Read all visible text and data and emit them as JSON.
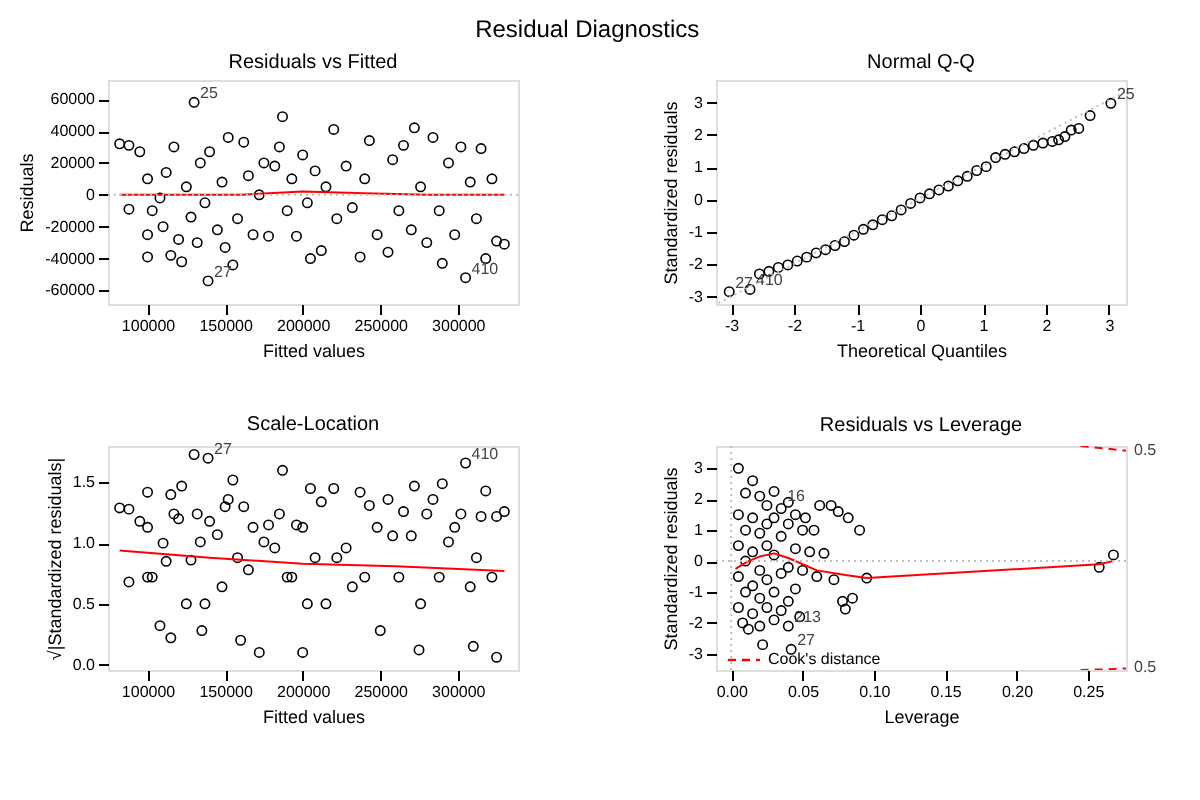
{
  "chart_data": [
    {
      "type": "other",
      "title": "Residual Diagnostics"
    },
    {
      "type": "scatter",
      "title": "Residuals vs Fitted",
      "xlabel": "Fitted values",
      "ylabel": "Residuals",
      "xlim": [
        74500,
        338800
      ],
      "ylim": [
        -68500,
        72000
      ],
      "xticks": [
        100000,
        150000,
        200000,
        250000,
        300000
      ],
      "yticks": [
        -60000,
        -40000,
        -20000,
        0,
        20000,
        40000,
        60000
      ],
      "grid": false,
      "marker": "circle",
      "series": [
        {
          "type": "scatter",
          "color": "#000000",
          "x": [
            82000,
            88000,
            88000,
            95000,
            100000,
            100000,
            100000,
            103000,
            108000,
            110000,
            112000,
            115000,
            117000,
            120000,
            122000,
            125000,
            128000,
            130000,
            132000,
            134000,
            137000,
            139000,
            140000,
            145000,
            148000,
            150000,
            152000,
            155000,
            158000,
            162000,
            165000,
            168000,
            172000,
            175000,
            178000,
            182000,
            185000,
            187000,
            190000,
            193000,
            196000,
            200000,
            203000,
            205000,
            208000,
            212000,
            215000,
            220000,
            222000,
            228000,
            232000,
            237000,
            240000,
            243000,
            248000,
            255000,
            258000,
            262000,
            265000,
            270000,
            272000,
            276000,
            280000,
            284000,
            288000,
            290000,
            294000,
            298000,
            302000,
            305000,
            308000,
            312000,
            315000,
            318000,
            322000,
            325000,
            330000
          ],
          "values": [
            32000,
            31000,
            -9000,
            27000,
            -25000,
            -39000,
            10000,
            -10000,
            -2000,
            -20000,
            14000,
            -38000,
            30000,
            -28000,
            -42000,
            5000,
            -14000,
            58000,
            -30000,
            20000,
            -5000,
            -54000,
            27000,
            -22000,
            8000,
            -33000,
            36000,
            -44000,
            -15000,
            33000,
            12000,
            -25000,
            0,
            20000,
            -26000,
            18000,
            30000,
            49000,
            -10000,
            10000,
            -26000,
            25000,
            -5000,
            -40000,
            15000,
            -35000,
            5000,
            41000,
            -15000,
            18000,
            -8000,
            -39000,
            10000,
            34000,
            -25000,
            -36000,
            22000,
            -10000,
            31000,
            -22000,
            42000,
            5000,
            -30000,
            36000,
            -10000,
            -43000,
            20000,
            -25000,
            30000,
            -52000,
            8000,
            -15000,
            29000,
            -40000,
            10000,
            -29000,
            -31000
          ]
        },
        {
          "type": "line",
          "color": "#ff0000",
          "line_style": "solid",
          "marker": "none",
          "x": [
            82000,
            120000,
            160000,
            200000,
            240000,
            280000,
            330000
          ],
          "values": [
            0,
            0,
            0,
            2000,
            1000,
            0,
            0
          ]
        }
      ],
      "ref_lines": [
        {
          "axis": "y",
          "value": 0,
          "color": "#bebebe",
          "line_style": "dotted"
        }
      ],
      "annotations": [
        {
          "text": "25",
          "x": 130000,
          "y": 58000
        },
        {
          "text": "27",
          "x": 139000,
          "y": -54000
        },
        {
          "text": "410",
          "x": 305000,
          "y": -52000
        }
      ]
    },
    {
      "type": "scatter",
      "title": "Normal Q-Q",
      "xlabel": "Theoretical Quantiles",
      "ylabel": "Standardized residuals",
      "xlim": [
        -3.24,
        3.27
      ],
      "ylim": [
        -3.23,
        3.7
      ],
      "xticks": [
        -3,
        -2,
        -1,
        0,
        1,
        2,
        3
      ],
      "yticks": [
        -3,
        -2,
        -1,
        0,
        1,
        2,
        3
      ],
      "grid": false,
      "marker": "circle",
      "series": [
        {
          "type": "scatter",
          "color": "#000000",
          "x": [
            -3.03,
            -2.7,
            -2.55,
            -2.4,
            -2.25,
            -2.1,
            -1.95,
            -1.8,
            -1.65,
            -1.5,
            -1.35,
            -1.2,
            -1.05,
            -0.9,
            -0.75,
            -0.6,
            -0.45,
            -0.3,
            -0.15,
            0,
            0.15,
            0.3,
            0.45,
            0.6,
            0.75,
            0.9,
            1.05,
            1.2,
            1.35,
            1.5,
            1.65,
            1.8,
            1.95,
            2.1,
            2.2,
            2.3,
            2.4,
            2.52,
            2.7,
            3.03
          ],
          "values": [
            -2.85,
            -2.78,
            -2.3,
            -2.22,
            -2.1,
            -2.02,
            -1.9,
            -1.78,
            -1.65,
            -1.55,
            -1.42,
            -1.3,
            -1.1,
            -0.92,
            -0.78,
            -0.62,
            -0.5,
            -0.32,
            -0.12,
            0.05,
            0.18,
            0.3,
            0.42,
            0.58,
            0.72,
            0.9,
            1.02,
            1.3,
            1.4,
            1.48,
            1.58,
            1.68,
            1.75,
            1.8,
            1.85,
            1.95,
            2.15,
            2.2,
            2.6,
            2.98
          ]
        },
        {
          "type": "line",
          "color": "#bebebe",
          "line_style": "dotted",
          "marker": "none",
          "x": [
            -3.2,
            3.27
          ],
          "values": [
            -3.2,
            3.35
          ]
        }
      ],
      "annotations": [
        {
          "text": "25",
          "x": 3.03,
          "y": 2.98
        },
        {
          "text": "27",
          "x": -3.03,
          "y": -2.85
        },
        {
          "text": "410",
          "x": -2.7,
          "y": -2.78
        }
      ]
    },
    {
      "type": "scatter",
      "title": "Scale-Location",
      "xlabel": "Fitted values",
      "ylabel": "√|Standardized residuals|",
      "xlim": [
        74500,
        338800
      ],
      "ylim": [
        -0.045,
        1.8
      ],
      "xticks": [
        100000,
        150000,
        200000,
        250000,
        300000
      ],
      "yticks": [
        {
          "value": 0,
          "label": "0.0"
        },
        0.5,
        {
          "value": 1,
          "label": "1.0"
        },
        1.5
      ],
      "grid": false,
      "marker": "circle",
      "series": [
        {
          "type": "scatter",
          "color": "#000000",
          "x": [
            82000,
            88000,
            88000,
            95000,
            100000,
            100000,
            100000,
            103000,
            108000,
            110000,
            112000,
            115000,
            117000,
            120000,
            122000,
            125000,
            128000,
            130000,
            132000,
            134000,
            137000,
            139000,
            140000,
            145000,
            148000,
            150000,
            152000,
            155000,
            158000,
            162000,
            165000,
            168000,
            172000,
            175000,
            178000,
            182000,
            185000,
            187000,
            190000,
            193000,
            196000,
            200000,
            203000,
            205000,
            208000,
            212000,
            215000,
            220000,
            222000,
            228000,
            232000,
            237000,
            240000,
            243000,
            248000,
            255000,
            258000,
            262000,
            265000,
            270000,
            272000,
            276000,
            280000,
            284000,
            288000,
            290000,
            294000,
            298000,
            302000,
            305000,
            308000,
            312000,
            315000,
            318000,
            322000,
            325000,
            330000,
            115000,
            135000,
            160000,
            200000,
            250000,
            275000,
            310000,
            325000
          ],
          "values": [
            1.29,
            1.28,
            0.68,
            1.18,
            1.13,
            1.42,
            0.72,
            0.72,
            0.32,
            1.0,
            0.85,
            1.4,
            1.24,
            1.2,
            1.47,
            0.5,
            0.86,
            1.73,
            1.24,
            1.01,
            0.5,
            1.7,
            1.18,
            1.07,
            0.64,
            1.3,
            1.36,
            1.52,
            0.88,
            1.3,
            0.78,
            1.13,
            0.1,
            1.01,
            1.15,
            0.96,
            1.24,
            1.6,
            0.72,
            0.72,
            1.15,
            1.13,
            0.5,
            1.45,
            0.88,
            1.34,
            0.5,
            1.45,
            0.88,
            0.96,
            0.64,
            1.42,
            0.72,
            1.31,
            1.13,
            1.36,
            1.06,
            0.72,
            1.26,
            1.06,
            1.47,
            0.5,
            1.24,
            1.36,
            0.72,
            1.49,
            1.01,
            1.13,
            1.24,
            1.66,
            0.64,
            0.88,
            1.22,
            1.43,
            0.72,
            1.22,
            1.26,
            0.22,
            0.28,
            0.2,
            0.1,
            0.28,
            0.12,
            0.15,
            0.06
          ]
        },
        {
          "type": "line",
          "color": "#ff0000",
          "line_style": "solid",
          "marker": "none",
          "x": [
            82000,
            140000,
            200000,
            260000,
            330000
          ],
          "values": [
            0.94,
            0.88,
            0.83,
            0.81,
            0.77
          ]
        }
      ],
      "annotations": [
        {
          "text": "27",
          "x": 139000,
          "y": 1.7
        },
        {
          "text": "410",
          "x": 305000,
          "y": 1.66
        }
      ]
    },
    {
      "type": "scatter",
      "title": "Residuals vs Leverage",
      "xlabel": "Leverage",
      "ylabel": "Standardized residuals",
      "xlim": [
        -0.0107,
        0.2768
      ],
      "ylim": [
        -3.52,
        3.72
      ],
      "xticks": [
        {
          "value": 0,
          "label": "0.00"
        },
        0.05,
        {
          "value": 0.1,
          "label": "0.10"
        },
        0.15,
        {
          "value": 0.2,
          "label": "0.20"
        },
        0.25
      ],
      "yticks": [
        -3,
        -2,
        -1,
        0,
        1,
        2,
        3
      ],
      "grid": false,
      "marker": "circle",
      "legend": "bottom left",
      "series": [
        {
          "type": "scatter",
          "color": "#000000",
          "x": [
            0.005,
            0.01,
            0.015,
            0.02,
            0.025,
            0.03,
            0.035,
            0.04,
            0.045,
            0.05,
            0.052,
            0.055,
            0.058,
            0.06,
            0.062,
            0.065,
            0.07,
            0.072,
            0.075,
            0.078,
            0.08,
            0.082,
            0.085,
            0.09,
            0.095,
            0.258,
            0.268,
            0.005,
            0.005,
            0.005,
            0.005,
            0.008,
            0.01,
            0.01,
            0.01,
            0.012,
            0.015,
            0.015,
            0.015,
            0.015,
            0.02,
            0.02,
            0.02,
            0.02,
            0.022,
            0.025,
            0.025,
            0.025,
            0.025,
            0.03,
            0.03,
            0.03,
            0.03,
            0.035,
            0.035,
            0.035,
            0.04,
            0.04,
            0.04,
            0.04,
            0.042,
            0.045,
            0.045,
            0.048,
            0.05
          ],
          "values": [
            3.0,
            2.2,
            2.6,
            2.1,
            1.8,
            2.25,
            1.7,
            1.9,
            1.5,
            1.0,
            1.4,
            0.3,
            1.0,
            -0.5,
            1.8,
            0.25,
            1.8,
            -0.6,
            1.6,
            -1.3,
            -1.55,
            1.4,
            -1.2,
            1.0,
            -0.55,
            -0.2,
            0.2,
            1.5,
            0.5,
            -0.5,
            -1.5,
            -2.0,
            1.0,
            0,
            -1.0,
            -2.2,
            1.4,
            0.3,
            -0.8,
            -1.7,
            0.9,
            -0.3,
            -1.2,
            -2.1,
            -2.7,
            1.2,
            0.5,
            -0.6,
            -1.5,
            1.4,
            0.2,
            -1.0,
            -1.9,
            0.8,
            -0.4,
            -1.6,
            1.2,
            -0.2,
            -1.3,
            -2.1,
            -2.85,
            0.4,
            -0.9,
            -1.8,
            -0.3
          ]
        },
        {
          "type": "line",
          "color": "#ff0000",
          "line_style": "solid",
          "marker": "none",
          "x": [
            0.003,
            0.01,
            0.02,
            0.03,
            0.04,
            0.06,
            0.08,
            0.095,
            0.258,
            0.268
          ],
          "values": [
            -0.25,
            -0.05,
            0.15,
            0.25,
            0.1,
            -0.3,
            -0.45,
            -0.55,
            -0.1,
            0.0
          ]
        },
        {
          "type": "line",
          "name": "Cook's distance",
          "color": "#ff0000",
          "line_style": "dashed",
          "marker": "none",
          "x": [
            0.245,
            0.26,
            0.2768
          ],
          "values": [
            3.72,
            3.65,
            3.57
          ]
        },
        {
          "type": "line",
          "color": "#ff0000",
          "line_style": "dashed",
          "marker": "none",
          "x": [
            0.245,
            0.26,
            0.2768
          ],
          "values": [
            -3.52,
            -3.5,
            -3.47
          ]
        }
      ],
      "ref_lines": [
        {
          "axis": "y",
          "value": 0,
          "color": "#bebebe",
          "line_style": "dotted"
        },
        {
          "axis": "x",
          "value": 0,
          "color": "#bebebe",
          "line_style": "dotted"
        }
      ],
      "annotations": [
        {
          "text": "16",
          "x": 0.035,
          "y": 1.8
        },
        {
          "text": "213",
          "x": 0.04,
          "y": -2.1
        },
        {
          "text": "27",
          "x": 0.042,
          "y": -2.85
        },
        {
          "text": "0.5",
          "x": 0.2768,
          "y": 3.57
        },
        {
          "text": "0.5",
          "x": 0.2768,
          "y": -3.47
        }
      ]
    }
  ]
}
